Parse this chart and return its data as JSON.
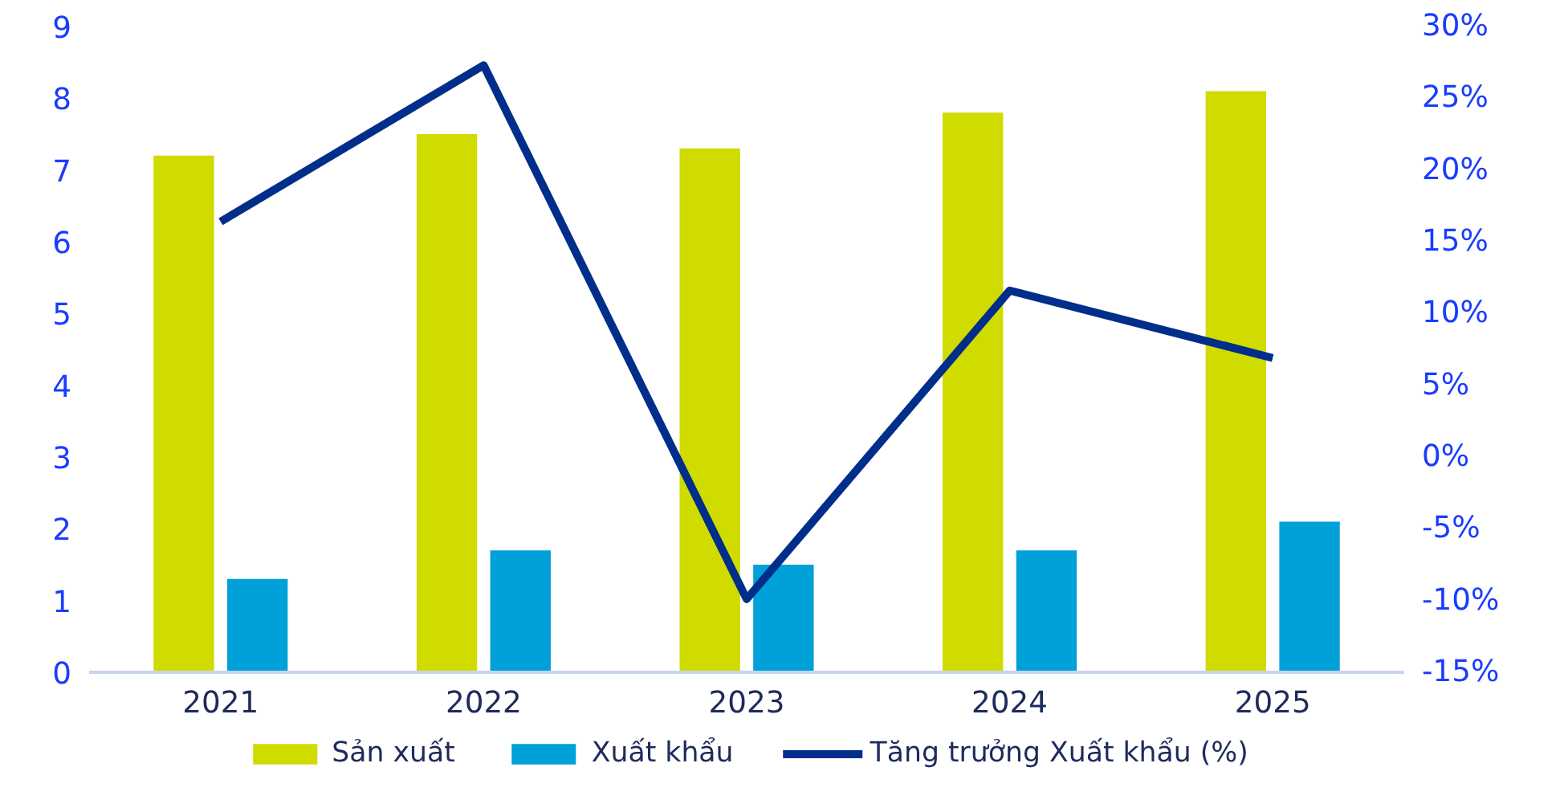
{
  "chart_data": {
    "type": "bar",
    "categories": [
      "2021",
      "2022",
      "2023",
      "2024",
      "2025"
    ],
    "series": [
      {
        "name": "Sản xuất",
        "color": "#d0db00",
        "values": [
          7.2,
          7.5,
          7.3,
          7.8,
          8.1
        ]
      },
      {
        "name": "Xuất khẩu",
        "color": "#00a0d8",
        "values": [
          1.3,
          1.7,
          1.5,
          1.7,
          2.1
        ]
      },
      {
        "name": "Tăng trưởng Xuất khẩu (%)",
        "color": "#002e8a",
        "type": "line",
        "axis": "y2",
        "values": [
          16.4,
          27.3,
          -9.9,
          11.6,
          6.9
        ]
      }
    ],
    "ylim": [
      0,
      9
    ],
    "yticks": [
      0,
      1,
      2,
      3,
      4,
      5,
      6,
      7,
      8,
      9
    ],
    "y2lim": [
      -15,
      30
    ],
    "y2ticks": [
      {
        "value": -15,
        "label": "-15%"
      },
      {
        "value": -10,
        "label": "-10%"
      },
      {
        "value": -5,
        "label": "-5%"
      },
      {
        "value": 0,
        "label": "0%"
      },
      {
        "value": 5,
        "label": "5%"
      },
      {
        "value": 10,
        "label": "10%"
      },
      {
        "value": 15,
        "label": "15%"
      },
      {
        "value": 20,
        "label": "20%"
      },
      {
        "value": 25,
        "label": "25%"
      },
      {
        "value": 30,
        "label": "30%"
      }
    ],
    "grid": false,
    "legend": "bottom",
    "line_style": "solid",
    "marker": "none"
  }
}
